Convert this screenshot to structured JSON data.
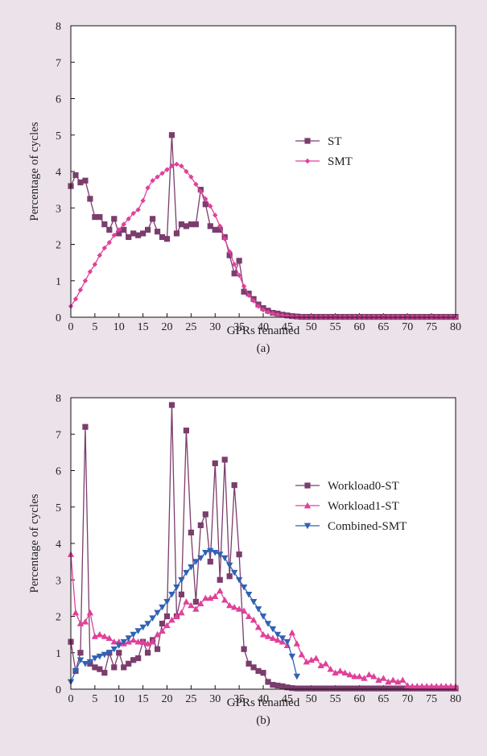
{
  "chart_data": [
    {
      "type": "line",
      "caption": "(a)",
      "xlabel": "GPRs renamed",
      "ylabel": "Percentage of cycles",
      "xlim": [
        0,
        80
      ],
      "ylim": [
        0,
        8
      ],
      "xticks": [
        0,
        5,
        10,
        15,
        20,
        25,
        30,
        35,
        40,
        45,
        50,
        55,
        60,
        65,
        70,
        75,
        80
      ],
      "yticks": [
        0,
        1,
        2,
        3,
        4,
        5,
        6,
        7,
        8
      ],
      "legend_position": "right",
      "series": [
        {
          "name": "ST",
          "color": "#7b3d6d",
          "marker": "square",
          "x": [
            0,
            1,
            2,
            3,
            4,
            5,
            6,
            7,
            8,
            9,
            10,
            11,
            12,
            13,
            14,
            15,
            16,
            17,
            18,
            19,
            20,
            21,
            22,
            23,
            24,
            25,
            26,
            27,
            28,
            29,
            30,
            31,
            32,
            33,
            34,
            35,
            36,
            37,
            38,
            39,
            40,
            41,
            42,
            43,
            44,
            45,
            46,
            47,
            48,
            49,
            50,
            51,
            52,
            53,
            54,
            55,
            56,
            57,
            58,
            59,
            60,
            61,
            62,
            63,
            64,
            65,
            66,
            67,
            68,
            69,
            70,
            71,
            72,
            73,
            74,
            75,
            76,
            77,
            78,
            79,
            80
          ],
          "values": [
            3.6,
            3.9,
            3.7,
            3.75,
            3.25,
            2.75,
            2.75,
            2.55,
            2.4,
            2.7,
            2.3,
            2.4,
            2.2,
            2.3,
            2.25,
            2.3,
            2.4,
            2.7,
            2.35,
            2.2,
            2.15,
            5.0,
            2.3,
            2.55,
            2.5,
            2.55,
            2.55,
            3.5,
            3.1,
            2.5,
            2.4,
            2.4,
            2.2,
            1.7,
            1.2,
            1.55,
            0.7,
            0.65,
            0.5,
            0.35,
            0.25,
            0.18,
            0.12,
            0.1,
            0.07,
            0.05,
            0.03,
            0.02,
            0.01,
            0.01,
            0.01,
            0.01,
            0.01,
            0.01,
            0.01,
            0.01,
            0.01,
            0.01,
            0.01,
            0.01,
            0.01,
            0.01,
            0.01,
            0.01,
            0.01,
            0.01,
            0.01,
            0.01,
            0.01,
            0.01,
            0.01,
            0.01,
            0.01,
            0.01,
            0.01,
            0.01,
            0.01,
            0.01,
            0.01,
            0.01,
            0.01
          ]
        },
        {
          "name": "SMT",
          "color": "#e0409a",
          "marker": "diamond",
          "x": [
            0,
            1,
            2,
            3,
            4,
            5,
            6,
            7,
            8,
            9,
            10,
            11,
            12,
            13,
            14,
            15,
            16,
            17,
            18,
            19,
            20,
            21,
            22,
            23,
            24,
            25,
            26,
            27,
            28,
            29,
            30,
            31,
            32,
            33,
            34,
            35,
            36,
            37,
            38,
            39,
            40,
            41,
            42,
            43,
            44,
            45,
            46,
            47,
            48,
            49,
            50,
            51,
            52,
            53,
            54,
            55,
            56,
            57,
            58,
            59,
            60,
            61,
            62,
            63,
            64,
            65,
            66,
            67,
            68,
            69,
            70,
            71,
            72,
            73,
            74,
            75,
            76,
            77,
            78,
            79,
            80
          ],
          "values": [
            0.3,
            0.5,
            0.75,
            1.0,
            1.25,
            1.45,
            1.7,
            1.9,
            2.05,
            2.25,
            2.4,
            2.55,
            2.7,
            2.85,
            2.95,
            3.2,
            3.55,
            3.75,
            3.85,
            3.95,
            4.05,
            4.15,
            4.2,
            4.15,
            4.0,
            3.85,
            3.65,
            3.45,
            3.25,
            3.05,
            2.8,
            2.5,
            2.15,
            1.8,
            1.45,
            1.15,
            0.85,
            0.6,
            0.45,
            0.3,
            0.2,
            0.14,
            0.1,
            0.07,
            0.05,
            0.03,
            0.02,
            0.01,
            0.01,
            0.01,
            0.01,
            0.01,
            0.01,
            0.01,
            0.01,
            0.01,
            0.01,
            0.01,
            0.01,
            0.01,
            0.01,
            0.01,
            0.01,
            0.01,
            0.01,
            0.01,
            0.01,
            0.01,
            0.01,
            0.01,
            0.01,
            0.01,
            0.01,
            0.01,
            0.01,
            0.01,
            0.01,
            0.01,
            0.01,
            0.01,
            0.01
          ]
        }
      ]
    },
    {
      "type": "line",
      "caption": "(b)",
      "xlabel": "GPRs renamed",
      "ylabel": "Percentage of cycles",
      "xlim": [
        0,
        80
      ],
      "ylim": [
        0,
        8
      ],
      "xticks": [
        0,
        5,
        10,
        15,
        20,
        25,
        30,
        35,
        40,
        45,
        50,
        55,
        60,
        65,
        70,
        75,
        80
      ],
      "yticks": [
        0,
        1,
        2,
        3,
        4,
        5,
        6,
        7,
        8
      ],
      "legend_position": "right",
      "series": [
        {
          "name": "Workload0-ST",
          "color": "#7b3d6d",
          "marker": "square",
          "x": [
            0,
            1,
            2,
            3,
            4,
            5,
            6,
            7,
            8,
            9,
            10,
            11,
            12,
            13,
            14,
            15,
            16,
            17,
            18,
            19,
            20,
            21,
            22,
            23,
            24,
            25,
            26,
            27,
            28,
            29,
            30,
            31,
            32,
            33,
            34,
            35,
            36,
            37,
            38,
            39,
            40,
            41,
            42,
            43,
            44,
            45,
            46,
            47,
            48,
            49,
            50,
            51,
            52,
            53,
            54,
            55,
            56,
            57,
            58,
            59,
            60,
            61,
            62,
            63,
            64,
            65,
            66,
            67,
            68,
            69,
            70,
            71,
            72,
            73,
            74,
            75,
            76,
            77,
            78,
            79,
            80
          ],
          "values": [
            1.3,
            0.5,
            1.0,
            7.2,
            0.7,
            0.6,
            0.55,
            0.45,
            1.0,
            0.6,
            1.0,
            0.6,
            0.7,
            0.8,
            0.85,
            1.3,
            1.0,
            1.35,
            1.1,
            1.8,
            2.0,
            7.8,
            2.0,
            2.6,
            7.1,
            4.3,
            2.4,
            4.5,
            4.8,
            3.5,
            6.2,
            3.0,
            6.3,
            3.1,
            5.6,
            3.7,
            1.1,
            0.7,
            0.6,
            0.5,
            0.45,
            0.2,
            0.12,
            0.1,
            0.08,
            0.05,
            0.03,
            0.02,
            0.02,
            0.02,
            0.02,
            0.02,
            0.02,
            0.02,
            0.02,
            0.02,
            0.02,
            0.02,
            0.02,
            0.02,
            0.02,
            0.02,
            0.02,
            0.02,
            0.02,
            0.02,
            0.02,
            0.02,
            0.02,
            0.02,
            0.02,
            0.02,
            0.02,
            0.02,
            0.02,
            0.02,
            0.02,
            0.02,
            0.02,
            0.02,
            0.02
          ]
        },
        {
          "name": "Workload1-ST",
          "color": "#e0409a",
          "marker": "triangle-up",
          "x": [
            0,
            1,
            2,
            3,
            4,
            5,
            6,
            7,
            8,
            9,
            10,
            11,
            12,
            13,
            14,
            15,
            16,
            17,
            18,
            19,
            20,
            21,
            22,
            23,
            24,
            25,
            26,
            27,
            28,
            29,
            30,
            31,
            32,
            33,
            34,
            35,
            36,
            37,
            38,
            39,
            40,
            41,
            42,
            43,
            44,
            45,
            46,
            47,
            48,
            49,
            50,
            51,
            52,
            53,
            54,
            55,
            56,
            57,
            58,
            59,
            60,
            61,
            62,
            63,
            64,
            65,
            66,
            67,
            68,
            69,
            70,
            71,
            72,
            73,
            74,
            75,
            76,
            77,
            78,
            79,
            80
          ],
          "values": [
            3.7,
            2.1,
            1.8,
            1.85,
            2.1,
            1.45,
            1.5,
            1.45,
            1.4,
            1.3,
            1.3,
            1.25,
            1.3,
            1.35,
            1.3,
            1.3,
            1.25,
            1.3,
            1.5,
            1.6,
            1.75,
            1.9,
            2.0,
            2.1,
            2.4,
            2.3,
            2.2,
            2.35,
            2.5,
            2.5,
            2.55,
            2.7,
            2.45,
            2.3,
            2.25,
            2.2,
            2.15,
            2.0,
            1.9,
            1.7,
            1.5,
            1.45,
            1.4,
            1.35,
            1.3,
            1.2,
            1.55,
            1.25,
            0.95,
            0.75,
            0.8,
            0.85,
            0.65,
            0.7,
            0.55,
            0.45,
            0.5,
            0.45,
            0.4,
            0.35,
            0.35,
            0.3,
            0.4,
            0.35,
            0.25,
            0.3,
            0.2,
            0.25,
            0.2,
            0.25,
            0.1,
            0.08,
            0.08,
            0.08,
            0.08,
            0.08,
            0.08,
            0.08,
            0.08,
            0.08,
            0.08
          ]
        },
        {
          "name": "Combined-SMT",
          "color": "#2f62b5",
          "marker": "triangle-down",
          "x": [
            0,
            1,
            2,
            3,
            4,
            5,
            6,
            7,
            8,
            9,
            10,
            11,
            12,
            13,
            14,
            15,
            16,
            17,
            18,
            19,
            20,
            21,
            22,
            23,
            24,
            25,
            26,
            27,
            28,
            29,
            30,
            31,
            32,
            33,
            34,
            35,
            36,
            37,
            38,
            39,
            40,
            41,
            42,
            43,
            44,
            45,
            46,
            47
          ],
          "values": [
            0.2,
            0.5,
            0.8,
            0.7,
            0.75,
            0.85,
            0.9,
            0.95,
            1.0,
            1.1,
            1.2,
            1.3,
            1.4,
            1.5,
            1.6,
            1.7,
            1.8,
            1.95,
            2.1,
            2.25,
            2.4,
            2.6,
            2.8,
            3.0,
            3.2,
            3.35,
            3.5,
            3.6,
            3.75,
            3.8,
            3.75,
            3.7,
            3.6,
            3.4,
            3.2,
            3.0,
            2.8,
            2.6,
            2.4,
            2.2,
            2.0,
            1.8,
            1.65,
            1.5,
            1.4,
            1.3,
            0.9,
            0.35
          ]
        }
      ]
    }
  ]
}
